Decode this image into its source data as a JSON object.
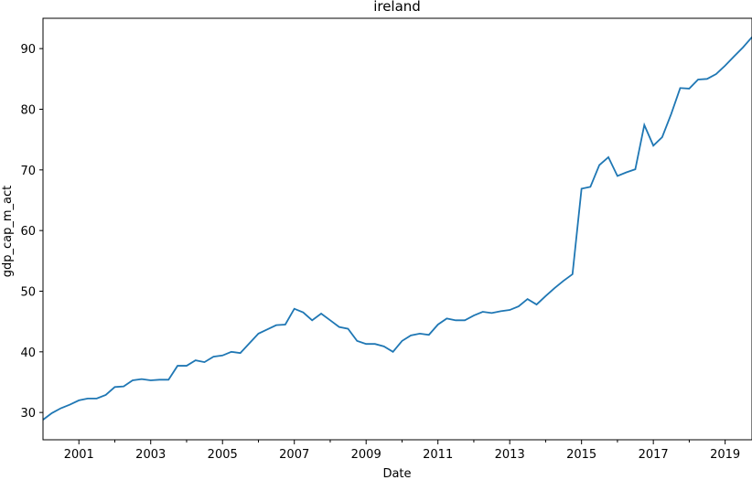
{
  "chart_data": {
    "type": "line",
    "title": "ireland",
    "xlabel": "Date",
    "ylabel": "gdp_cap_m_act",
    "xlim": [
      "2000-01-01",
      "2019-10-01"
    ],
    "ylim": [
      25.5,
      95
    ],
    "x_ticks": [
      "2001",
      "2003",
      "2005",
      "2007",
      "2009",
      "2011",
      "2013",
      "2015",
      "2017",
      "2019"
    ],
    "y_ticks": [
      30,
      40,
      50,
      60,
      70,
      80,
      90
    ],
    "grid": false,
    "colors": {
      "line": "#1f77b4"
    },
    "series": [
      {
        "x": [
          "2000-01-01",
          "2000-04-01",
          "2000-07-01",
          "2000-10-01",
          "2001-01-01",
          "2001-04-01",
          "2001-07-01",
          "2001-10-01",
          "2002-01-01",
          "2002-04-01",
          "2002-07-01",
          "2002-10-01",
          "2003-01-01",
          "2003-04-01",
          "2003-07-01",
          "2003-10-01",
          "2004-01-01",
          "2004-04-01",
          "2004-07-01",
          "2004-10-01",
          "2005-01-01",
          "2005-04-01",
          "2005-07-01",
          "2005-10-01",
          "2006-01-01",
          "2006-04-01",
          "2006-07-01",
          "2006-10-01",
          "2007-01-01",
          "2007-04-01",
          "2007-07-01",
          "2007-10-01",
          "2008-01-01",
          "2008-04-01",
          "2008-07-01",
          "2008-10-01",
          "2009-01-01",
          "2009-04-01",
          "2009-07-01",
          "2009-10-01",
          "2010-01-01",
          "2010-04-01",
          "2010-07-01",
          "2010-10-01",
          "2011-01-01",
          "2011-04-01",
          "2011-07-01",
          "2011-10-01",
          "2012-01-01",
          "2012-04-01",
          "2012-07-01",
          "2012-10-01",
          "2013-01-01",
          "2013-04-01",
          "2013-07-01",
          "2013-10-01",
          "2014-01-01",
          "2014-04-01",
          "2014-07-01",
          "2014-10-01",
          "2015-01-01",
          "2015-04-01",
          "2015-07-01",
          "2015-10-01",
          "2016-01-01",
          "2016-04-01",
          "2016-07-01",
          "2016-10-01",
          "2017-01-01",
          "2017-04-01",
          "2017-07-01",
          "2017-10-01",
          "2018-01-01",
          "2018-04-01",
          "2018-07-01",
          "2018-10-01",
          "2019-01-01",
          "2019-04-01",
          "2019-07-01",
          "2019-10-01"
        ],
        "values": [
          28.8,
          29.9,
          30.7,
          31.3,
          32.0,
          32.3,
          32.3,
          32.9,
          34.2,
          34.3,
          35.3,
          35.5,
          35.3,
          35.4,
          35.4,
          37.7,
          37.7,
          38.6,
          38.3,
          39.2,
          39.4,
          40.0,
          39.8,
          41.4,
          43.0,
          43.7,
          44.4,
          44.5,
          47.1,
          46.5,
          45.2,
          46.3,
          45.2,
          44.1,
          43.8,
          41.8,
          41.3,
          41.3,
          40.9,
          40.0,
          41.8,
          42.7,
          43.0,
          42.8,
          44.5,
          45.5,
          45.2,
          45.2,
          46.0,
          46.6,
          46.4,
          46.7,
          46.9,
          47.5,
          48.7,
          47.8,
          49.2,
          50.5,
          51.7,
          52.8,
          66.9,
          67.2,
          70.8,
          72.1,
          69.0,
          69.6,
          70.1,
          77.4,
          74.0,
          75.4,
          79.2,
          83.5,
          83.4,
          84.9,
          85.0,
          85.8,
          87.2,
          88.7,
          90.2,
          91.9
        ]
      }
    ]
  }
}
